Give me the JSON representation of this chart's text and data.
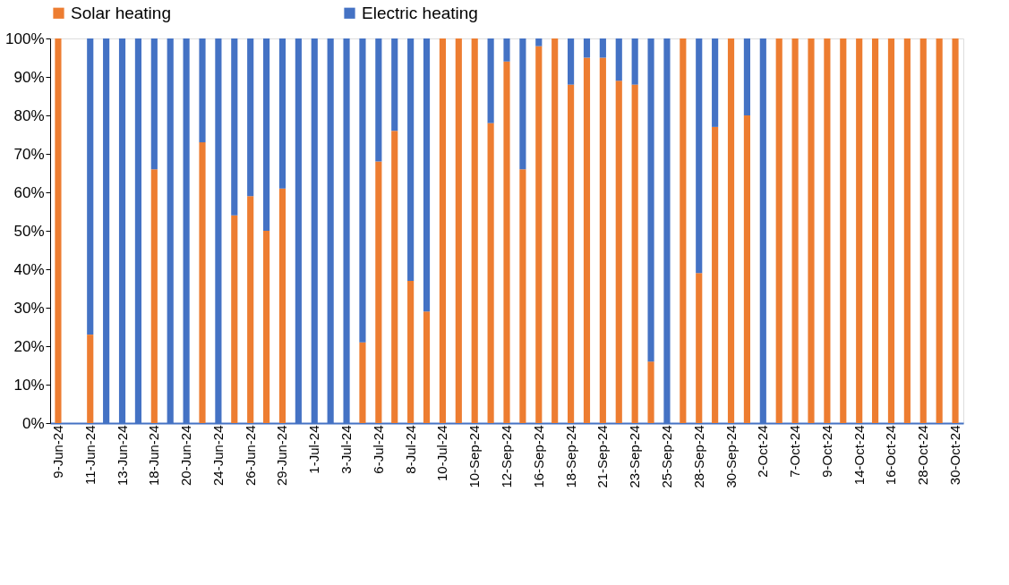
{
  "chart_data": {
    "type": "bar",
    "stacked": true,
    "legend": "top",
    "grid": false,
    "categories": [
      "9-Jun-24",
      null,
      "11-Jun-24",
      null,
      "13-Jun-24",
      null,
      "18-Jun-24",
      null,
      "20-Jun-24",
      null,
      "24-Jun-24",
      null,
      "26-Jun-24",
      null,
      "29-Jun-24",
      null,
      "1-Jul-24",
      null,
      "3-Jul-24",
      null,
      "6-Jul-24",
      null,
      "8-Jul-24",
      null,
      "10-Jul-24",
      null,
      "10-Sep-24",
      null,
      "12-Sep-24",
      null,
      "16-Sep-24",
      null,
      "18-Sep-24",
      null,
      "21-Sep-24",
      null,
      "23-Sep-24",
      null,
      "25-Sep-24",
      null,
      "28-Sep-24",
      null,
      "30-Sep-24",
      null,
      "2-Oct-24",
      null,
      "7-Oct-24",
      null,
      "9-Oct-24",
      null,
      "14-Oct-24",
      null,
      "16-Oct-24",
      null,
      "28-Oct-24",
      null,
      "30-Oct-24"
    ],
    "series": [
      {
        "name": "Solar heating",
        "color": "#ed7d31",
        "values": [
          100,
          null,
          23,
          0,
          0,
          0,
          66,
          0,
          0,
          73,
          0,
          54,
          59,
          50,
          61,
          0,
          0,
          0,
          0,
          21,
          68,
          76,
          37,
          29,
          100,
          100,
          100,
          78,
          94,
          66,
          98,
          100,
          88,
          95,
          95,
          89,
          88,
          16,
          0,
          100,
          39,
          77,
          100,
          80,
          0,
          100,
          100,
          100,
          100,
          100,
          100,
          100,
          100,
          100,
          100,
          100,
          100
        ]
      },
      {
        "name": "Electric heating",
        "color": "#4472c4",
        "values": [
          0,
          null,
          77,
          100,
          100,
          100,
          34,
          100,
          100,
          27,
          100,
          46,
          41,
          50,
          39,
          100,
          100,
          100,
          100,
          79,
          32,
          24,
          63,
          71,
          0,
          0,
          0,
          22,
          6,
          34,
          2,
          0,
          12,
          5,
          5,
          11,
          12,
          84,
          100,
          0,
          61,
          23,
          0,
          20,
          100,
          0,
          0,
          0,
          0,
          0,
          0,
          0,
          0,
          0,
          0,
          0,
          0
        ]
      }
    ],
    "ylim": [
      0,
      100
    ],
    "yticks": [
      {
        "value": 0,
        "label": "0%"
      },
      {
        "value": 10,
        "label": "10%"
      },
      {
        "value": 20,
        "label": "20%"
      },
      {
        "value": 30,
        "label": "30%"
      },
      {
        "value": 40,
        "label": "40%"
      },
      {
        "value": 50,
        "label": "50%"
      },
      {
        "value": 60,
        "label": "60%"
      },
      {
        "value": 70,
        "label": "70%"
      },
      {
        "value": 80,
        "label": "80%"
      },
      {
        "value": 90,
        "label": "90%"
      },
      {
        "value": 100,
        "label": "100%"
      }
    ]
  }
}
